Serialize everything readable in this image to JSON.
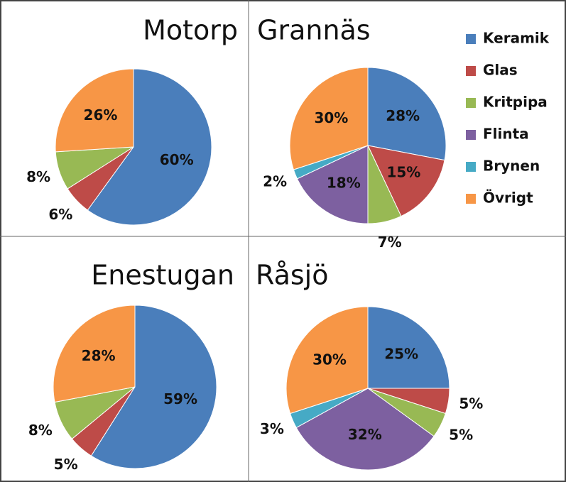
{
  "chart_data": [
    {
      "type": "pie",
      "title": "Motorp",
      "categories": [
        "Keramik",
        "Glas",
        "Kritpipa",
        "Övrigt"
      ],
      "values": [
        60,
        6,
        8,
        26
      ],
      "value_labels": [
        "60%",
        "6%",
        "8%",
        "26%"
      ],
      "colors": [
        "#4a7ebb",
        "#be4b48",
        "#98b954",
        "#f79646"
      ]
    },
    {
      "type": "pie",
      "title": "Grannäs",
      "categories": [
        "Keramik",
        "Glas",
        "Kritpipa",
        "Flinta",
        "Brynen",
        "Övrigt"
      ],
      "values": [
        28,
        15,
        7,
        18,
        2,
        30
      ],
      "value_labels": [
        "28%",
        "15%",
        "7%",
        "18%",
        "2%",
        "30%"
      ],
      "colors": [
        "#4a7ebb",
        "#be4b48",
        "#98b954",
        "#7d60a0",
        "#46aac5",
        "#f79646"
      ],
      "legend": "right"
    },
    {
      "type": "pie",
      "title": "Enestugan",
      "categories": [
        "Keramik",
        "Glas",
        "Kritpipa",
        "Övrigt"
      ],
      "values": [
        59,
        5,
        8,
        28
      ],
      "value_labels": [
        "59%",
        "5%",
        "8%",
        "28%"
      ],
      "colors": [
        "#4a7ebb",
        "#be4b48",
        "#98b954",
        "#f79646"
      ]
    },
    {
      "type": "pie",
      "title": "Råsjö",
      "categories": [
        "Keramik",
        "Glas",
        "Kritpipa",
        "Flinta",
        "Brynen",
        "Övrigt"
      ],
      "values": [
        25,
        5,
        5,
        32,
        3,
        30
      ],
      "value_labels": [
        "25%",
        "5%",
        "5%",
        "32%",
        "3%",
        "30%"
      ],
      "colors": [
        "#4a7ebb",
        "#be4b48",
        "#98b954",
        "#7d60a0",
        "#46aac5",
        "#f79646"
      ]
    }
  ]
}
